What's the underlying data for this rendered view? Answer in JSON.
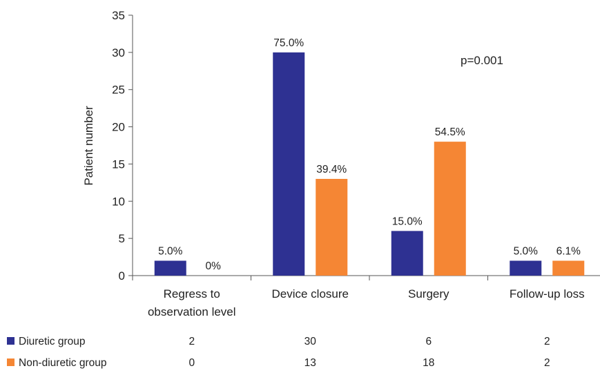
{
  "chart_data": {
    "type": "bar",
    "ylabel": "Patient number",
    "ylim": [
      0,
      35
    ],
    "yticks": [
      0,
      5,
      10,
      15,
      20,
      25,
      30,
      35
    ],
    "categories": [
      [
        "Regress to",
        "observation level"
      ],
      [
        "Device closure"
      ],
      [
        "Surgery"
      ],
      [
        "Follow-up loss"
      ]
    ],
    "series": [
      {
        "name": "Diuretic group",
        "color": "#2e3192",
        "values": [
          2,
          30,
          6,
          2
        ],
        "labels": [
          "5.0%",
          "75.0%",
          "15.0%",
          "5.0%"
        ]
      },
      {
        "name": "Non-diuretic group",
        "color": "#f58634",
        "values": [
          0,
          13,
          18,
          2
        ],
        "labels": [
          "0%",
          "39.4%",
          "54.5%",
          "6.1%"
        ]
      }
    ],
    "table": {
      "rows": [
        {
          "series": "Diuretic group",
          "cells": [
            "2",
            "30",
            "6",
            "2"
          ]
        },
        {
          "series": "Non-diuretic group",
          "cells": [
            "0",
            "13",
            "18",
            "2"
          ]
        }
      ]
    },
    "annotation": "p=0.001",
    "legend": "data-table",
    "grid": false
  }
}
